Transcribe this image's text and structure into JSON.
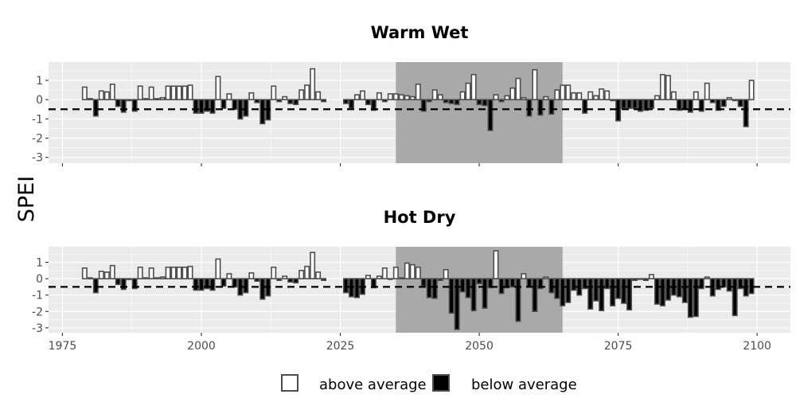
{
  "chart_data": {
    "type": "bar",
    "ylabel": "SPEI",
    "threshold": -0.5,
    "xlim": [
      1972.5,
      2106
    ],
    "ylim": [
      -3.3,
      1.95
    ],
    "y_ticks": [
      -3,
      -2,
      -1,
      0,
      1
    ],
    "x_ticks": [
      1975,
      2000,
      2025,
      2050,
      2075,
      2100
    ],
    "highlight_period": [
      2035,
      2065
    ],
    "legend": {
      "position": "bottom",
      "above_label": "above average",
      "below_label": "below average"
    },
    "colors": {
      "above": "#ffffff",
      "below": "#000000",
      "bar_outline": "#4d4d4d",
      "panel_bg": "#ebebeb",
      "grid": "#ffffff",
      "highlight": "#a9a9a9"
    },
    "historical_years": [
      1979,
      2022
    ],
    "historical_values": [
      0.65,
      0.05,
      -0.85,
      0.45,
      0.4,
      0.8,
      -0.35,
      -0.65,
      -0.05,
      -0.6,
      0.7,
      0.05,
      0.65,
      0.05,
      0.1,
      0.7,
      0.7,
      0.7,
      0.7,
      0.75,
      -0.7,
      -0.7,
      -0.6,
      -0.7,
      1.2,
      -0.45,
      0.3,
      -0.5,
      -1.0,
      -0.85,
      0.35,
      -0.15,
      -1.25,
      -1.05,
      0.7,
      -0.1,
      0.15,
      -0.2,
      -0.25,
      0.5,
      0.75,
      1.6,
      0.4,
      -0.1
    ],
    "panels": [
      {
        "title": "Warm Wet",
        "future_years": [
          2026,
          2099
        ],
        "future_values": [
          -0.2,
          -0.45,
          0.25,
          0.45,
          -0.25,
          -0.55,
          0.35,
          -0.1,
          0.3,
          0.3,
          0.25,
          0.2,
          0.15,
          0.8,
          -0.6,
          -0.1,
          0.5,
          0.25,
          -0.15,
          -0.2,
          -0.25,
          0.4,
          0.85,
          1.3,
          -0.25,
          -0.3,
          -1.6,
          0.25,
          -0.1,
          0.2,
          0.6,
          1.1,
          0.1,
          -0.85,
          1.55,
          -0.8,
          0.15,
          -0.75,
          0.5,
          0.75,
          0.75,
          0.35,
          0.35,
          -0.7,
          0.4,
          0.2,
          0.55,
          0.45,
          -0.05,
          -1.1,
          -0.45,
          -0.45,
          -0.45,
          -0.6,
          -0.55,
          -0.45,
          0.2,
          1.3,
          1.25,
          0.4,
          -0.55,
          -0.5,
          -0.65,
          0.4,
          -0.6,
          0.85,
          -0.15,
          -0.55,
          -0.35,
          0.1,
          -0.05,
          -0.35,
          -1.4,
          1.0
        ]
      },
      {
        "title": "Hot Dry",
        "future_years": [
          2026,
          2099
        ],
        "future_values": [
          -0.85,
          -1.1,
          -1.15,
          -0.95,
          0.2,
          -0.55,
          0.15,
          0.65,
          0.0,
          0.7,
          0.05,
          0.95,
          0.85,
          0.7,
          -0.45,
          -1.15,
          -1.2,
          -0.1,
          0.55,
          -2.1,
          -3.1,
          -0.8,
          -1.15,
          -1.95,
          -0.3,
          -1.8,
          -0.55,
          1.7,
          -0.9,
          -0.55,
          -0.5,
          -2.6,
          0.3,
          -0.5,
          -2.0,
          -0.6,
          0.1,
          -0.85,
          -1.2,
          -1.65,
          -1.45,
          -0.7,
          -1.0,
          -0.6,
          -1.85,
          -1.35,
          -1.95,
          -0.6,
          -1.65,
          -1.2,
          -1.5,
          -1.9,
          -0.1,
          0.0,
          -0.1,
          0.25,
          -1.55,
          -1.65,
          -1.3,
          -1.0,
          -1.1,
          -1.45,
          -2.35,
          -2.3,
          -0.6,
          0.1,
          -1.05,
          -0.65,
          -0.5,
          -0.75,
          -2.25,
          -0.6,
          -1.05,
          -0.9
        ]
      }
    ]
  }
}
